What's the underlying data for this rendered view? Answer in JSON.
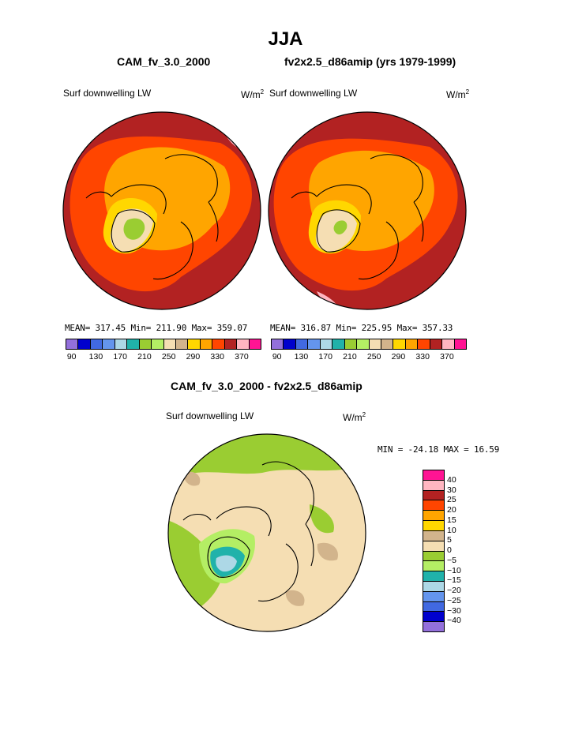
{
  "figure": {
    "title": "JJA",
    "diff_title": "CAM_fv_3.0_2000 - fv2x2.5_d86amip"
  },
  "panels": [
    {
      "case_title": "CAM_fv_3.0_2000",
      "variable": "Surf downwelling LW",
      "unit_base": "W/m",
      "unit_exp": "2",
      "stats_text": "MEAN= 317.45  Min= 211.90  Max= 359.07"
    },
    {
      "case_title": "fv2x2.5_d86amip (yrs 1979-1999)",
      "variable": "Surf downwelling LW",
      "unit_base": "W/m",
      "unit_exp": "2",
      "stats_text": "MEAN= 316.87  Min= 225.95  Max= 357.33"
    }
  ],
  "diff_panel": {
    "variable": "Surf downwelling LW",
    "unit_base": "W/m",
    "unit_exp": "2",
    "stats_text": "MIN = -24.18 MAX =  16.59"
  },
  "colorbar_main": {
    "colors": [
      "#9370db",
      "#0000cd",
      "#4169e1",
      "#6495ed",
      "#add8e6",
      "#20b2aa",
      "#9acd32",
      "#b4ee64",
      "#f5deb3",
      "#d2b48c",
      "#ffd700",
      "#ffa500",
      "#ff4500",
      "#b22222",
      "#ffb6c1",
      "#ff1493"
    ],
    "labels": [
      "90",
      "130",
      "170",
      "210",
      "250",
      "290",
      "330",
      "370"
    ]
  },
  "colorbar_diff": {
    "colors": [
      "#ff1493",
      "#ffb6c1",
      "#b22222",
      "#ff4500",
      "#ffa500",
      "#ffd700",
      "#d2b48c",
      "#f5deb3",
      "#9acd32",
      "#b4ee64",
      "#20b2aa",
      "#add8e6",
      "#6495ed",
      "#4169e1",
      "#0000cd",
      "#9370db"
    ],
    "labels": [
      "40",
      "30",
      "25",
      "20",
      "15",
      "10",
      "5",
      "0",
      "-5",
      "-10",
      "-15",
      "-20",
      "-25",
      "-30",
      "-40"
    ]
  },
  "map_colors": {
    "outer": "#b22222",
    "ring": "#ff4500",
    "inner": "#ffa500",
    "band": "#ffd700",
    "greenland": "#f5deb3",
    "ice_core": "#9acd32",
    "max_spot": "#ffb6c1",
    "diff_base": "#f5deb3",
    "diff_green": "#9acd32",
    "diff_lightgreen": "#b4ee64",
    "diff_teal": "#20b2aa",
    "diff_lightblue": "#add8e6",
    "diff_tan": "#d2b48c"
  }
}
